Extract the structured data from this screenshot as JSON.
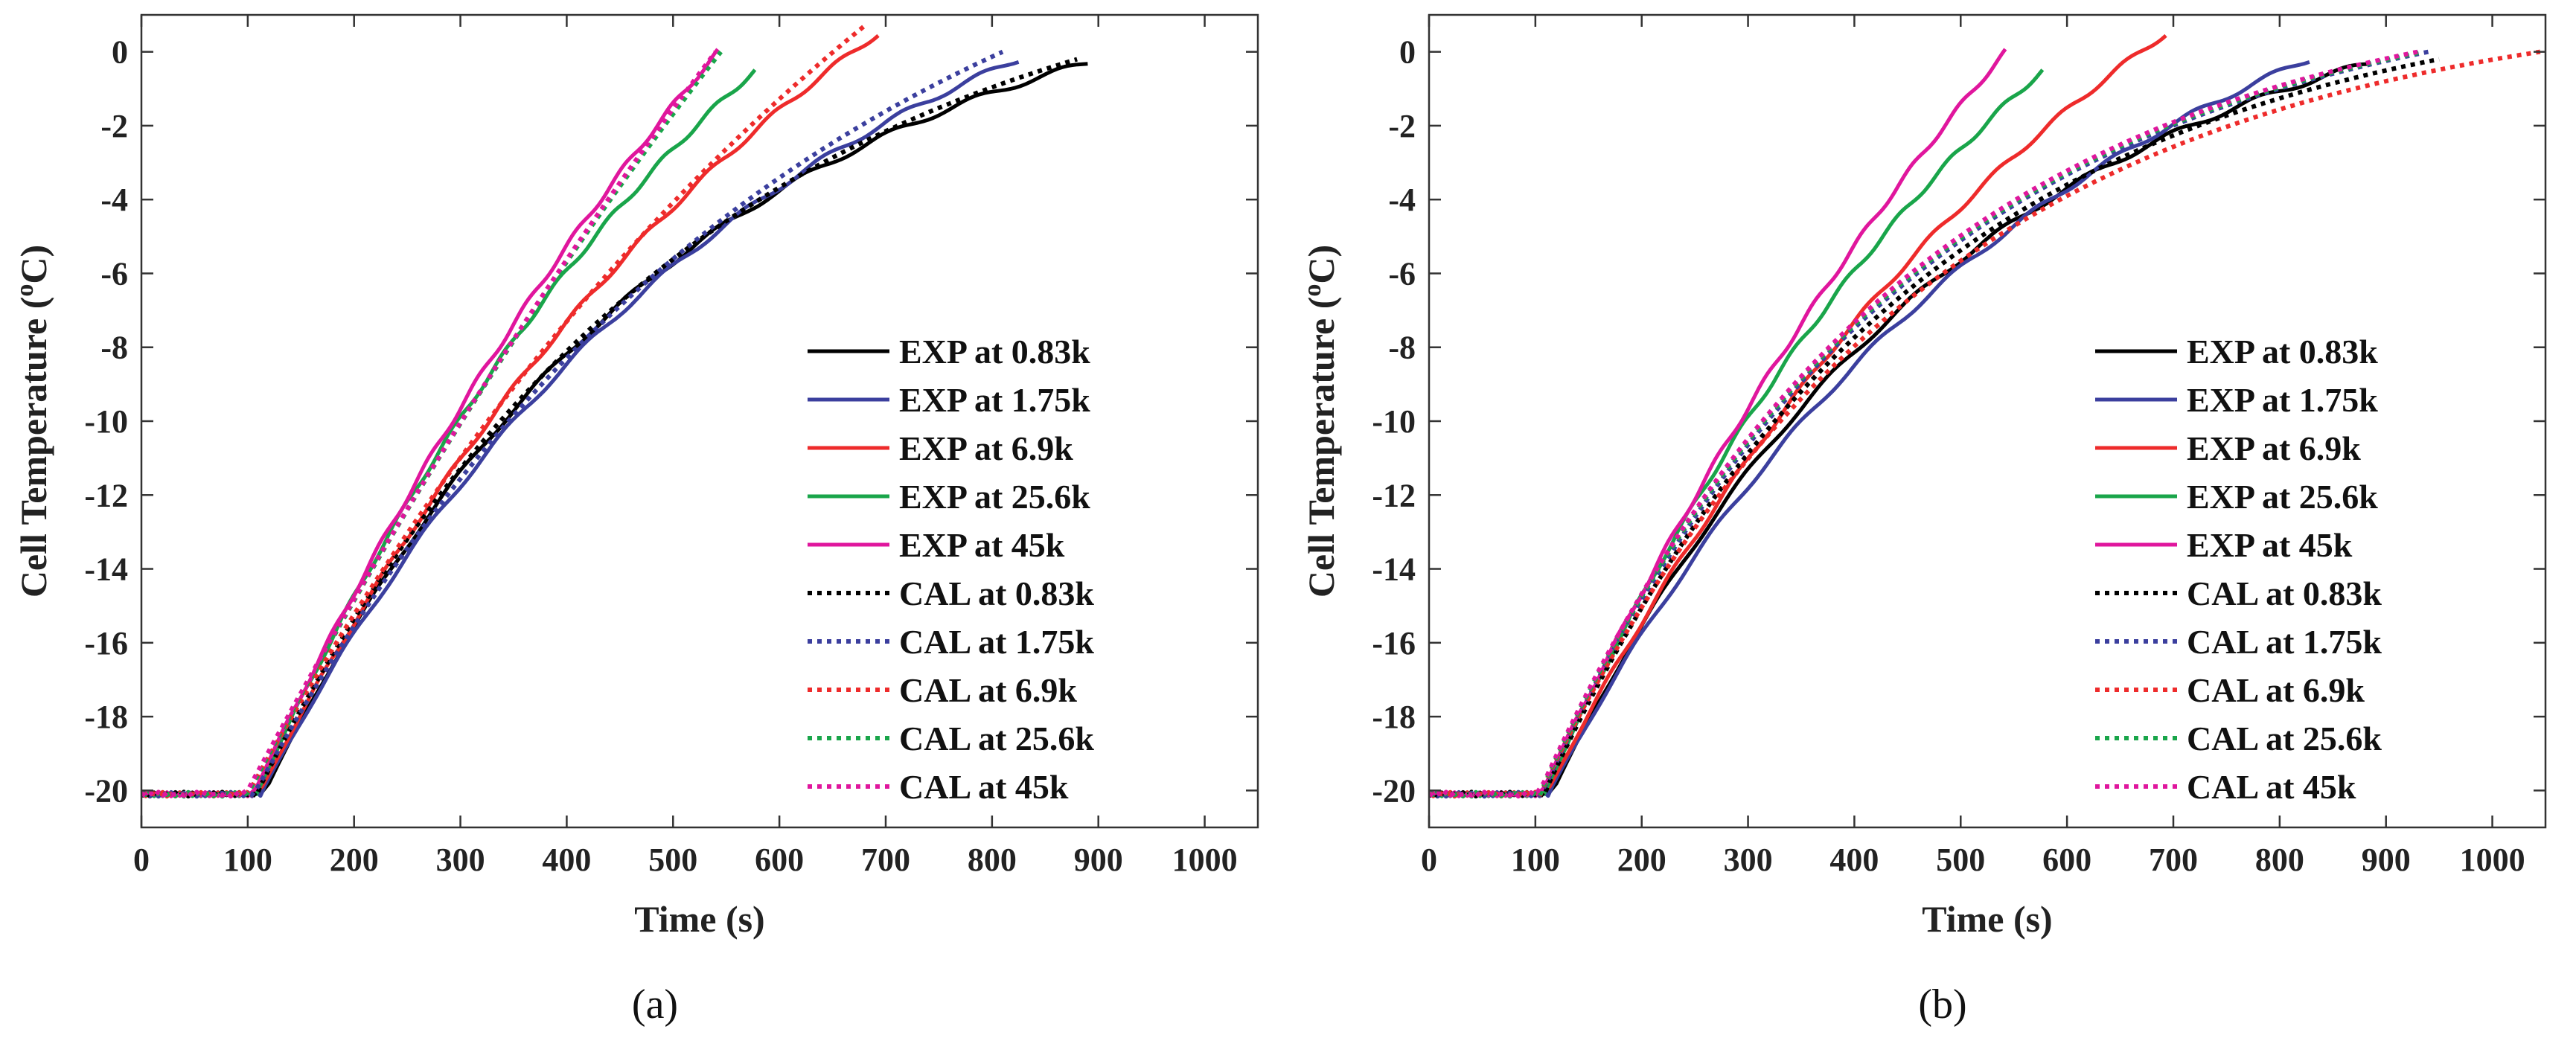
{
  "chart_data": [
    {
      "type": "line",
      "panel_label": "(a)",
      "xlabel": "Time (s)",
      "ylabel": "Cell Temperature (°C)",
      "ylabel_parts": {
        "pre": "Cell Temperature (",
        "sup": "o",
        "post": "C)"
      },
      "xlim": [
        0,
        1050
      ],
      "ylim": [
        -21,
        1
      ],
      "xticks": [
        0,
        100,
        200,
        300,
        400,
        500,
        600,
        700,
        800,
        900,
        1000
      ],
      "yticks": [
        0,
        -2,
        -4,
        -6,
        -8,
        -10,
        -12,
        -14,
        -16,
        -18,
        -20
      ],
      "grid": false,
      "legend_position": "right",
      "series": [
        {
          "name": "EXP at 0.83k",
          "color": "#000000",
          "style": "solid",
          "start": 115,
          "end": 890,
          "end_temp": -0.3,
          "k": 2.0
        },
        {
          "name": "EXP at 1.75k",
          "color": "#3b3f9e",
          "style": "solid",
          "start": 112,
          "end": 825,
          "end_temp": -0.2,
          "k": 1.5
        },
        {
          "name": "EXP at 6.9k",
          "color": "#ee2b2b",
          "style": "solid",
          "start": 110,
          "end": 693,
          "end_temp": 0.5,
          "k": 1.0
        },
        {
          "name": "EXP at 25.6k",
          "color": "#19a54a",
          "style": "solid",
          "start": 108,
          "end": 577,
          "end_temp": -0.5,
          "k": 0.9
        },
        {
          "name": "EXP at 45k",
          "color": "#e0169d",
          "style": "solid",
          "start": 105,
          "end": 542,
          "end_temp": 0.0,
          "k": 0.6
        },
        {
          "name": "CAL at 0.83k",
          "color": "#000000",
          "style": "dotted",
          "start": 108,
          "end": 880,
          "end_temp": -0.2,
          "k": 1.9
        },
        {
          "name": "CAL at 1.75k",
          "color": "#3b3f9e",
          "style": "dotted",
          "start": 106,
          "end": 810,
          "end_temp": 0.0,
          "k": 1.4
        },
        {
          "name": "CAL at 6.9k",
          "color": "#ee2b2b",
          "style": "dotted",
          "start": 100,
          "end": 680,
          "end_temp": 0.7,
          "k": 0.8
        },
        {
          "name": "CAL at 25.6k",
          "color": "#19a54a",
          "style": "dotted",
          "start": 100,
          "end": 545,
          "end_temp": 0.0,
          "k": 0.4
        },
        {
          "name": "CAL at 45k",
          "color": "#e0169d",
          "style": "dotted",
          "start": 98,
          "end": 540,
          "end_temp": 0.0,
          "k": 0.35
        }
      ]
    },
    {
      "type": "line",
      "panel_label": "(b)",
      "xlabel": "Time (s)",
      "ylabel": "Cell Temperature (°C)",
      "ylabel_parts": {
        "pre": "Cell Temperature (",
        "sup": "o",
        "post": "C)"
      },
      "xlim": [
        0,
        1050
      ],
      "ylim": [
        -21,
        1
      ],
      "xticks": [
        0,
        100,
        200,
        300,
        400,
        500,
        600,
        700,
        800,
        900,
        1000
      ],
      "yticks": [
        0,
        -2,
        -4,
        -6,
        -8,
        -10,
        -12,
        -14,
        -16,
        -18,
        -20
      ],
      "grid": false,
      "legend_position": "right",
      "series": [
        {
          "name": "EXP at 0.83k",
          "color": "#000000",
          "style": "solid",
          "start": 115,
          "end": 885,
          "end_temp": -0.3,
          "k": 2.0
        },
        {
          "name": "EXP at 1.75k",
          "color": "#3b3f9e",
          "style": "solid",
          "start": 112,
          "end": 828,
          "end_temp": -0.2,
          "k": 1.5
        },
        {
          "name": "EXP at 6.9k",
          "color": "#ee2b2b",
          "style": "solid",
          "start": 110,
          "end": 693,
          "end_temp": 0.5,
          "k": 1.0
        },
        {
          "name": "EXP at 25.6k",
          "color": "#19a54a",
          "style": "solid",
          "start": 108,
          "end": 577,
          "end_temp": -0.5,
          "k": 0.9
        },
        {
          "name": "EXP at 45k",
          "color": "#e0169d",
          "style": "solid",
          "start": 105,
          "end": 542,
          "end_temp": 0.0,
          "k": 0.6
        },
        {
          "name": "CAL at 0.83k",
          "color": "#000000",
          "style": "dotted",
          "start": 108,
          "end": 950,
          "end_temp": -0.2,
          "k": 2.4
        },
        {
          "name": "CAL at 1.75k",
          "color": "#3b3f9e",
          "style": "dotted",
          "start": 106,
          "end": 940,
          "end_temp": 0.0,
          "k": 2.4
        },
        {
          "name": "CAL at 6.9k",
          "color": "#ee2b2b",
          "style": "dotted",
          "start": 104,
          "end": 1045,
          "end_temp": 0.0,
          "k": 2.6
        },
        {
          "name": "CAL at 25.6k",
          "color": "#19a54a",
          "style": "dotted",
          "start": 104,
          "end": 935,
          "end_temp": 0.0,
          "k": 2.4
        },
        {
          "name": "CAL at 45k",
          "color": "#e0169d",
          "style": "dotted",
          "start": 103,
          "end": 930,
          "end_temp": 0.0,
          "k": 2.4
        }
      ]
    }
  ]
}
